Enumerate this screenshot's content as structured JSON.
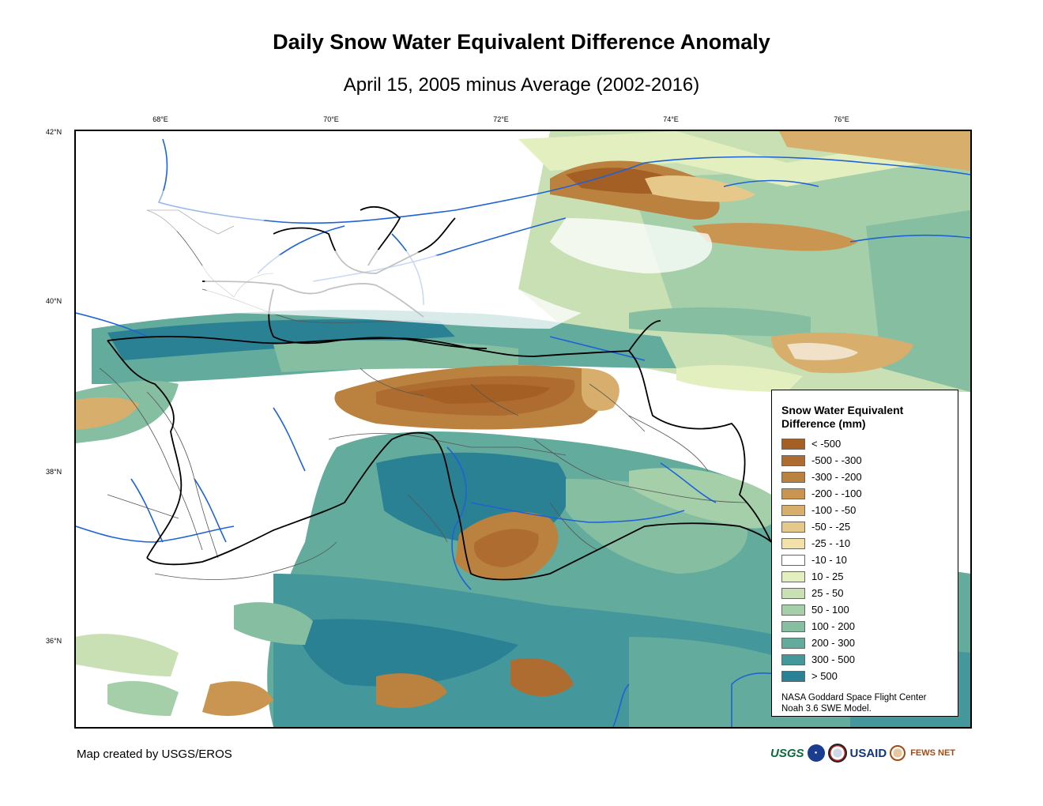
{
  "title": "Daily Snow Water Equivalent Difference Anomaly",
  "subtitle": "April 15, 2005 minus Average (2002-2016)",
  "longitude_ticks": [
    "68°E",
    "70°E",
    "72°E",
    "74°E",
    "76°E"
  ],
  "latitude_ticks": [
    "42°N",
    "40°N",
    "38°N",
    "36°N"
  ],
  "legend": {
    "title": "Snow Water Equivalent Difference (mm)",
    "classes": [
      {
        "label": "< -500",
        "color": "#a35f24"
      },
      {
        "label": "-500 - -300",
        "color": "#ae6c30"
      },
      {
        "label": "-300 - -200",
        "color": "#bb813f"
      },
      {
        "label": "-200 - -100",
        "color": "#c99550"
      },
      {
        "label": "-100 - -50",
        "color": "#d8ae6c"
      },
      {
        "label": "-50 - -25",
        "color": "#e6c98a"
      },
      {
        "label": "-25 - -10",
        "color": "#f2e1a8"
      },
      {
        "label": "-10 - 10",
        "color": "#ffffff"
      },
      {
        "label": "10 - 25",
        "color": "#e4efc0"
      },
      {
        "label": "25 - 50",
        "color": "#c8e0b4"
      },
      {
        "label": "50 - 100",
        "color": "#a5cfa9"
      },
      {
        "label": "100 - 200",
        "color": "#86bea2"
      },
      {
        "label": "200 - 300",
        "color": "#62ab9d"
      },
      {
        "label": "300 - 500",
        "color": "#44979a"
      },
      {
        "label": "> 500",
        "color": "#2a8194"
      }
    ],
    "credit_line1": "NASA Goddard Space Flight Center",
    "credit_line2": "Noah 3.6 SWE Model."
  },
  "footer": {
    "credit": "Map created by USGS/EROS",
    "logos": [
      "USGS",
      "USAID",
      "FEWS NET"
    ]
  },
  "colors": {
    "river": "#1e63d6",
    "border": "#000000",
    "admin_line": "#555555"
  }
}
